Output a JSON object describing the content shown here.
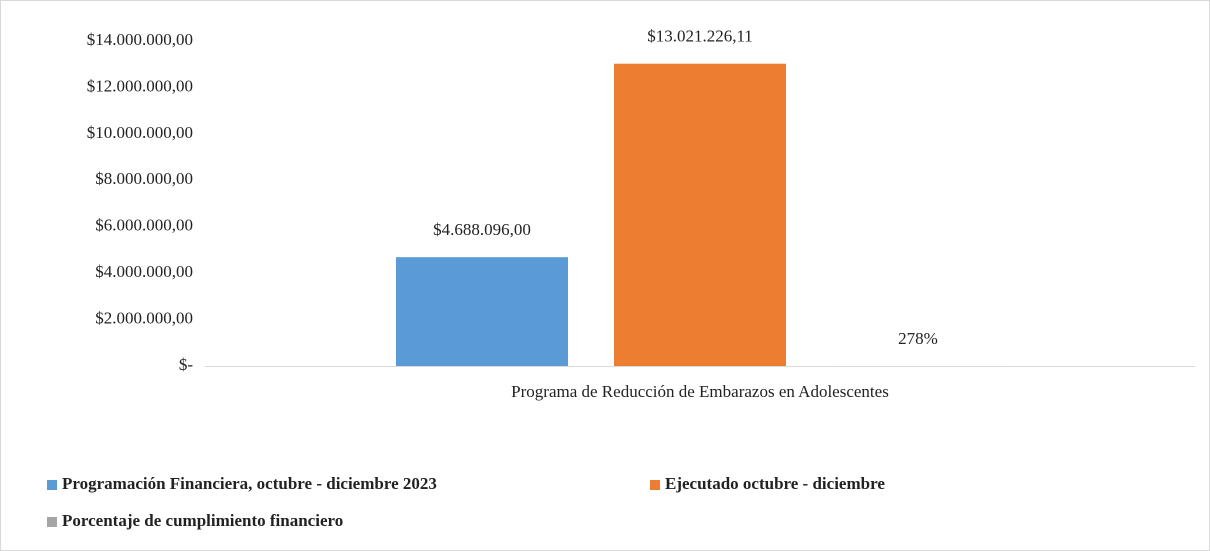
{
  "chart_data": {
    "type": "bar",
    "categories": [
      "Programa de Reducción de Embarazos en Adolescentes"
    ],
    "series": [
      {
        "name": "Programación Financiera, octubre - diciembre 2023",
        "color": "#5b9bd5",
        "values": [
          4688096
        ],
        "value_labels": [
          "$4.688.096,00"
        ]
      },
      {
        "name": "Ejecutado octubre - diciembre",
        "color": "#ed7d31",
        "values": [
          13021226.11
        ],
        "value_labels": [
          "$13.021.226,11"
        ]
      },
      {
        "name": "Porcentaje de cumplimiento financiero",
        "color": "#a5a5a5",
        "values": [
          278
        ],
        "value_labels": [
          "278%"
        ]
      }
    ],
    "ylim": [
      0,
      14000000
    ],
    "yticks": [
      {
        "value": 0,
        "label": "$-"
      },
      {
        "value": 2000000,
        "label": "$2.000.000,00"
      },
      {
        "value": 4000000,
        "label": "$4.000.000,00"
      },
      {
        "value": 6000000,
        "label": "$6.000.000,00"
      },
      {
        "value": 8000000,
        "label": "$8.000.000,00"
      },
      {
        "value": 10000000,
        "label": "$10.000.000,00"
      },
      {
        "value": 12000000,
        "label": "$12.000.000,00"
      },
      {
        "value": 14000000,
        "label": "$14.000.000,00"
      }
    ],
    "grid": false,
    "legend": "bottom"
  }
}
